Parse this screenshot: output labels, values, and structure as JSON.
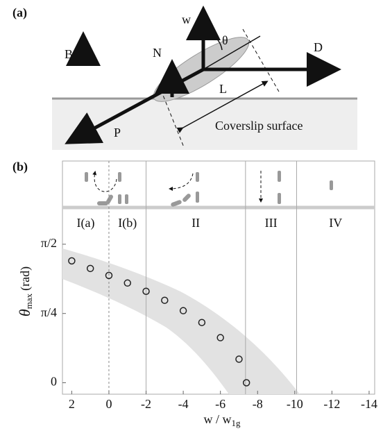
{
  "panel_a": {
    "label": "(a)",
    "w": "w",
    "theta": "θ",
    "D": "D",
    "B": "B",
    "N": "N",
    "L": "L",
    "P": "P",
    "surface": "Coverslip surface"
  },
  "chart_data": {
    "type": "scatter",
    "panel_label": "(b)",
    "x_label": {
      "text": "w / w",
      "subscript": "1g"
    },
    "y_label": {
      "symbol": "θ",
      "subscript": "max",
      "unit": "(rad)"
    },
    "x": [
      2,
      1,
      0,
      -1,
      -2,
      -3,
      -4,
      -5,
      -6,
      -7,
      -7.4
    ],
    "values": [
      1.382,
      1.296,
      1.217,
      1.131,
      1.037,
      0.935,
      0.817,
      0.683,
      0.511,
      0.267,
      0
    ],
    "xlim": [
      2.5,
      -14.3
    ],
    "xticks": [
      2,
      0,
      -2,
      -4,
      -6,
      -8,
      -10,
      -12,
      -14
    ],
    "ylim": [
      -0.13,
      1.94
    ],
    "yticks": [
      0,
      {
        "value": 0.7854,
        "label": "π/4"
      },
      {
        "value": 1.5708,
        "label": "π/2"
      }
    ],
    "regions": [
      "I(a)",
      "I(b)",
      "II",
      "III",
      "IV"
    ],
    "region_boundaries": [
      0,
      -2,
      -7.35,
      -10.1
    ],
    "boundary_dashed": [
      true,
      false,
      false,
      false
    ],
    "color": "#222"
  }
}
